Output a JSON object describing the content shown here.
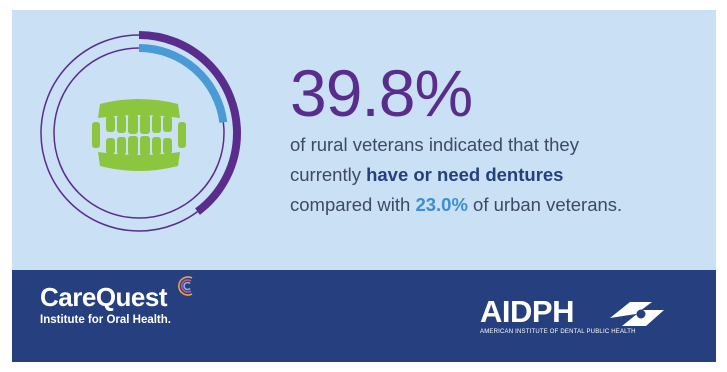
{
  "stat": {
    "value": "39.8%",
    "line1": "of rural veterans indicated that they",
    "line2_prefix": "currently ",
    "line2_bold": "have or need dentures",
    "line3_prefix": "compared with ",
    "line3_highlight": "23.0%",
    "line3_suffix": " of urban veterans."
  },
  "rings": {
    "rural_percent": 39.8,
    "urban_percent": 23.0,
    "rural_color": "#5a2d8c",
    "urban_color": "#4a9ad6",
    "icon": "dentures-icon"
  },
  "footer": {
    "carequest_name": "CareQuest",
    "carequest_tagline": "Institute for Oral Health.",
    "aidph_name": "AIDPH",
    "aidph_full": "AMERICAN INSTITUTE OF DENTAL PUBLIC HEALTH"
  },
  "colors": {
    "top_background": "#c9e0f5",
    "footer_background": "#26407f",
    "accent_purple": "#5a2d8c",
    "accent_blue": "#3e8fd2",
    "teeth_green": "#8cc63f"
  }
}
